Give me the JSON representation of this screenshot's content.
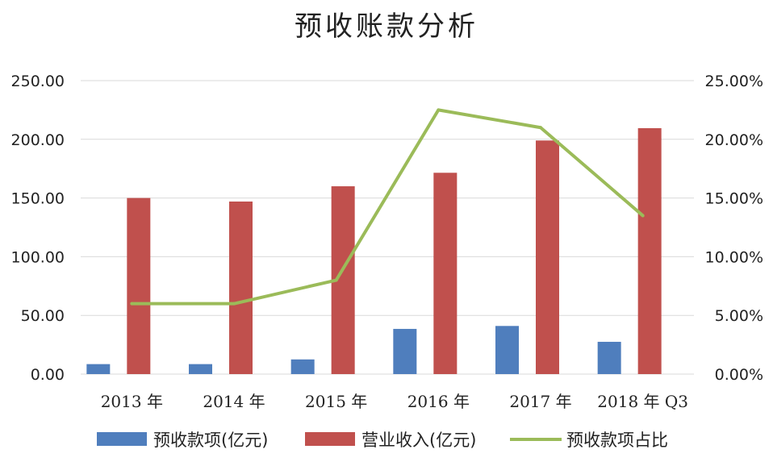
{
  "chart_data": {
    "type": "bar",
    "title": "预收账款分析",
    "categories": [
      "2013 年",
      "2014 年",
      "2015 年",
      "2016 年",
      "2017 年",
      "2018 年 Q3"
    ],
    "series": [
      {
        "name": "预收款项(亿元)",
        "type": "bar",
        "axis": "left",
        "color": "#4f7ebd",
        "values": [
          8.5,
          8.5,
          12.5,
          38.5,
          41,
          27.5
        ]
      },
      {
        "name": "营业收入(亿元)",
        "type": "bar",
        "axis": "left",
        "color": "#c0504d",
        "values": [
          150,
          147,
          160,
          171.5,
          199,
          209.5
        ]
      },
      {
        "name": "预收款项占比",
        "type": "line",
        "axis": "right",
        "color": "#9bbb59",
        "values": [
          6.0,
          6.0,
          8.0,
          22.5,
          21.0,
          13.5
        ]
      }
    ],
    "y_left": {
      "ylim": [
        0,
        250
      ],
      "ticks": [
        "0.00",
        "50.00",
        "100.00",
        "150.00",
        "200.00",
        "250.00"
      ]
    },
    "y_right": {
      "ylim": [
        0,
        25
      ],
      "ticks": [
        "0.00%",
        "5.00%",
        "10.00%",
        "15.00%",
        "20.00%",
        "25.00%"
      ]
    },
    "grid": true,
    "legend_position": "bottom"
  }
}
